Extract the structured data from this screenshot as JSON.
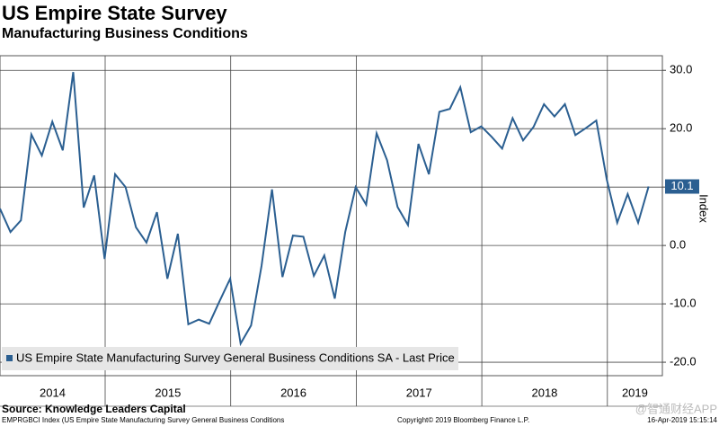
{
  "chart_data": {
    "type": "line",
    "title": "US Empire State Survey",
    "subtitle": "Manufacturing Business Conditions",
    "y_label": "Index",
    "x_labels": [
      "2014",
      "2015",
      "2016",
      "2017",
      "2018",
      "2019"
    ],
    "series": [
      {
        "name": "US Empire State Manufacturing Survey General Business Conditions SA - Last Price",
        "color": "#2b5f91",
        "values": [
          6.3,
          2.3,
          4.3,
          19,
          15.4,
          21.2,
          16.3,
          29.7,
          6.5,
          12,
          -2.3,
          12.2,
          10,
          3.1,
          0.5,
          5.7,
          -5.7,
          2,
          -13.5,
          -12.7,
          -13.4,
          -9.5,
          -5.7,
          -16.8,
          -13.7,
          -3.5,
          9.6,
          -5.4,
          1.7,
          1.5,
          -5.2,
          -1.7,
          -9.1,
          2.3,
          10,
          7,
          19.2,
          14.6,
          6.6,
          3.5,
          17.4,
          12.2,
          22.9,
          23.4,
          27.1,
          19.4,
          20.4,
          18.6,
          16.6,
          21.8,
          18,
          20.3,
          24.2,
          22.1,
          24.2,
          18.9,
          20.1,
          21.4,
          11.3,
          3.9,
          8.8,
          3.9,
          10.1
        ]
      }
    ],
    "ylim": [
      -22.3,
      32.5
    ],
    "yticks": [
      {
        "value": 30,
        "label": "30.0"
      },
      {
        "value": 20,
        "label": "20.0"
      },
      {
        "value": 10,
        "label": "10.0"
      },
      {
        "value": 0,
        "label": "0.0"
      },
      {
        "value": -10,
        "label": "-10.0"
      },
      {
        "value": -20,
        "label": "-20.0"
      }
    ],
    "grid": true,
    "source": "Source: Knowledge Leaders Capital",
    "footer_left": "EMPRGBCI Index (US Empire State Manufacturing Survey General Business Conditions",
    "footer_center": "Copyright© 2019 Bloomberg Finance L.P.",
    "footer_right": "16-Apr-2019 15:15:14",
    "watermark": "@智通财经APP"
  }
}
